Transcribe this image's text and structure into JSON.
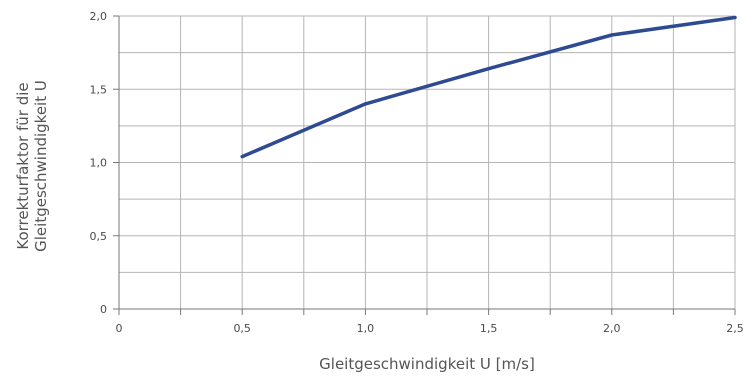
{
  "chart_data": {
    "type": "line",
    "title": "",
    "xlabel": "Gleitgeschwindigkeit U [m/s]",
    "ylabel_lines": [
      "Korrekturfaktor für die",
      "Gleitgeschwindigkeit U"
    ],
    "xlim": [
      0,
      2.5
    ],
    "ylim": [
      0,
      2.0
    ],
    "x_ticks": [
      {
        "value": 0,
        "label": "0"
      },
      {
        "value": 0.5,
        "label": "0,5"
      },
      {
        "value": 1.0,
        "label": "1,0"
      },
      {
        "value": 1.5,
        "label": "1,5"
      },
      {
        "value": 2.0,
        "label": "2,0"
      },
      {
        "value": 2.5,
        "label": "2,5"
      }
    ],
    "y_ticks": [
      {
        "value": 0,
        "label": "0"
      },
      {
        "value": 0.5,
        "label": "0,5"
      },
      {
        "value": 1.0,
        "label": "1,0"
      },
      {
        "value": 1.5,
        "label": "1,5"
      },
      {
        "value": 2.0,
        "label": "2,0"
      }
    ],
    "x_grid_step": 0.25,
    "y_grid_step": 0.25,
    "grid": true,
    "series": [
      {
        "color": "#2e4a92",
        "points": [
          {
            "x": 0.5,
            "y": 1.04
          },
          {
            "x": 1.0,
            "y": 1.4
          },
          {
            "x": 1.5,
            "y": 1.64
          },
          {
            "x": 2.0,
            "y": 1.87
          },
          {
            "x": 2.5,
            "y": 1.99
          }
        ]
      }
    ]
  }
}
